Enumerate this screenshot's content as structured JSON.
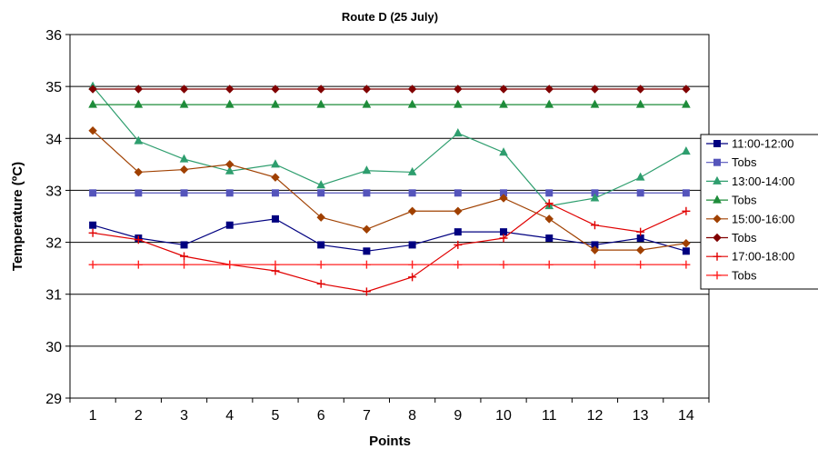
{
  "chart_data": {
    "type": "line",
    "title": "Route D (25 July)",
    "xlabel": "Points",
    "ylabel": "Temperature (ºC)",
    "x": [
      1,
      2,
      3,
      4,
      5,
      6,
      7,
      8,
      9,
      10,
      11,
      12,
      13,
      14
    ],
    "ylim": [
      29,
      36
    ],
    "yticks": [
      29,
      30,
      31,
      32,
      33,
      34,
      35,
      36
    ],
    "grid": true,
    "legend_position": "right",
    "series": [
      {
        "name": "11:00-12:00",
        "color": "#000080",
        "marker": "square",
        "values": [
          32.33,
          32.08,
          31.95,
          32.33,
          32.45,
          31.95,
          31.83,
          31.95,
          32.2,
          32.2,
          32.08,
          31.95,
          32.08,
          31.83
        ]
      },
      {
        "name": "Tobs",
        "color": "#5555BB",
        "marker": "square",
        "values": [
          32.95,
          32.95,
          32.95,
          32.95,
          32.95,
          32.95,
          32.95,
          32.95,
          32.95,
          32.95,
          32.95,
          32.95,
          32.95,
          32.95
        ]
      },
      {
        "name": "13:00-14:00",
        "color": "#2E9E6E",
        "marker": "triangle",
        "values": [
          35.0,
          33.95,
          33.6,
          33.37,
          33.5,
          33.1,
          33.38,
          33.35,
          34.1,
          33.73,
          32.7,
          32.85,
          33.25,
          33.75
        ]
      },
      {
        "name": "Tobs",
        "color": "#1E8C3A",
        "marker": "triangle",
        "values": [
          34.65,
          34.65,
          34.65,
          34.65,
          34.65,
          34.65,
          34.65,
          34.65,
          34.65,
          34.65,
          34.65,
          34.65,
          34.65,
          34.65
        ]
      },
      {
        "name": "15:00-16:00",
        "color": "#A04000",
        "marker": "diamond",
        "values": [
          34.15,
          33.35,
          33.4,
          33.5,
          33.25,
          32.48,
          32.25,
          32.6,
          32.6,
          32.85,
          32.45,
          31.85,
          31.85,
          31.98
        ]
      },
      {
        "name": "Tobs",
        "color": "#800000",
        "marker": "diamond",
        "values": [
          34.95,
          34.95,
          34.95,
          34.95,
          34.95,
          34.95,
          34.95,
          34.95,
          34.95,
          34.95,
          34.95,
          34.95,
          34.95,
          34.95
        ]
      },
      {
        "name": "17:00-18:00",
        "color": "#E00000",
        "marker": "plus",
        "values": [
          32.18,
          32.05,
          31.73,
          31.57,
          31.45,
          31.2,
          31.05,
          31.33,
          31.95,
          32.08,
          32.75,
          32.33,
          32.2,
          32.6
        ]
      },
      {
        "name": "Tobs",
        "color": "#FF2020",
        "marker": "plus",
        "values": [
          31.57,
          31.57,
          31.57,
          31.57,
          31.57,
          31.57,
          31.57,
          31.57,
          31.57,
          31.57,
          31.57,
          31.57,
          31.57,
          31.57
        ]
      }
    ]
  }
}
